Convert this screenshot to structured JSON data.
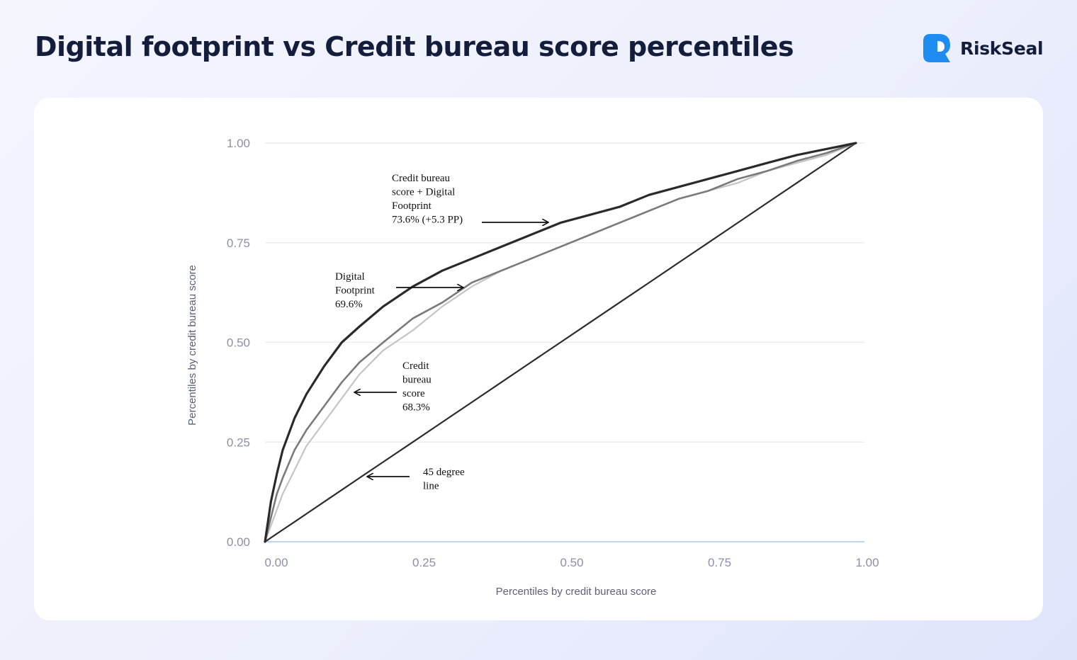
{
  "header": {
    "title": "Digital footprint vs Credit bureau score percentiles",
    "brand": "RiskSeal"
  },
  "colors": {
    "title": "#141d3c",
    "brand_accent": "#1f8cf2",
    "series_combined": "#2a2a2a",
    "series_digital": "#7a7a7a",
    "series_bureau": "#c4c4c4",
    "diagonal": "#2b2b2b",
    "gridline": "#ececec",
    "baseline": "#bcd6ef"
  },
  "chart_data": {
    "type": "line",
    "title": "",
    "xlabel": "Percentiles by credit bureau score",
    "ylabel": "Percentiles by credit bureau score",
    "xlim": [
      0,
      1
    ],
    "ylim": [
      0,
      1
    ],
    "grid": true,
    "xticks": [
      "0.00",
      "0.25",
      "0.50",
      "0.75",
      "1.00"
    ],
    "yticks": [
      "0.00",
      "0.25",
      "0.50",
      "0.75",
      "1.00"
    ],
    "x": [
      0,
      0.01,
      0.02,
      0.03,
      0.05,
      0.07,
      0.1,
      0.13,
      0.16,
      0.2,
      0.25,
      0.3,
      0.35,
      0.4,
      0.45,
      0.5,
      0.55,
      0.6,
      0.65,
      0.7,
      0.75,
      0.8,
      0.85,
      0.9,
      0.95,
      1.0
    ],
    "series": [
      {
        "key": "combined",
        "values": [
          0,
          0.1,
          0.17,
          0.23,
          0.31,
          0.37,
          0.44,
          0.5,
          0.54,
          0.59,
          0.64,
          0.68,
          0.71,
          0.74,
          0.77,
          0.8,
          0.82,
          0.84,
          0.87,
          0.89,
          0.91,
          0.93,
          0.95,
          0.97,
          0.985,
          1.0
        ]
      },
      {
        "key": "digital",
        "values": [
          0,
          0.06,
          0.12,
          0.16,
          0.23,
          0.28,
          0.34,
          0.4,
          0.45,
          0.5,
          0.56,
          0.6,
          0.65,
          0.68,
          0.71,
          0.74,
          0.77,
          0.8,
          0.83,
          0.86,
          0.88,
          0.91,
          0.93,
          0.955,
          0.975,
          1.0
        ]
      },
      {
        "key": "bureau",
        "values": [
          0,
          0.04,
          0.08,
          0.12,
          0.18,
          0.24,
          0.3,
          0.36,
          0.42,
          0.48,
          0.53,
          0.59,
          0.64,
          0.68,
          0.71,
          0.74,
          0.77,
          0.8,
          0.83,
          0.86,
          0.88,
          0.9,
          0.93,
          0.95,
          0.97,
          1.0
        ]
      },
      {
        "key": "diagonal",
        "values": [
          0,
          0.01,
          0.02,
          0.03,
          0.05,
          0.07,
          0.1,
          0.13,
          0.16,
          0.2,
          0.25,
          0.3,
          0.35,
          0.4,
          0.45,
          0.5,
          0.55,
          0.6,
          0.65,
          0.7,
          0.75,
          0.8,
          0.85,
          0.9,
          0.95,
          1.0
        ]
      }
    ],
    "annotations": [
      {
        "key": "combined",
        "lines": [
          "Credit bureau",
          "score + Digital",
          "Footprint",
          "73.6% (+5.3 PP)"
        ]
      },
      {
        "key": "digital",
        "lines": [
          "Digital",
          "Footprint",
          "69.6%"
        ]
      },
      {
        "key": "bureau",
        "lines": [
          "Credit",
          "bureau",
          "score",
          "68.3%"
        ]
      },
      {
        "key": "diagonal",
        "lines": [
          "45 degree",
          "line"
        ]
      }
    ]
  }
}
